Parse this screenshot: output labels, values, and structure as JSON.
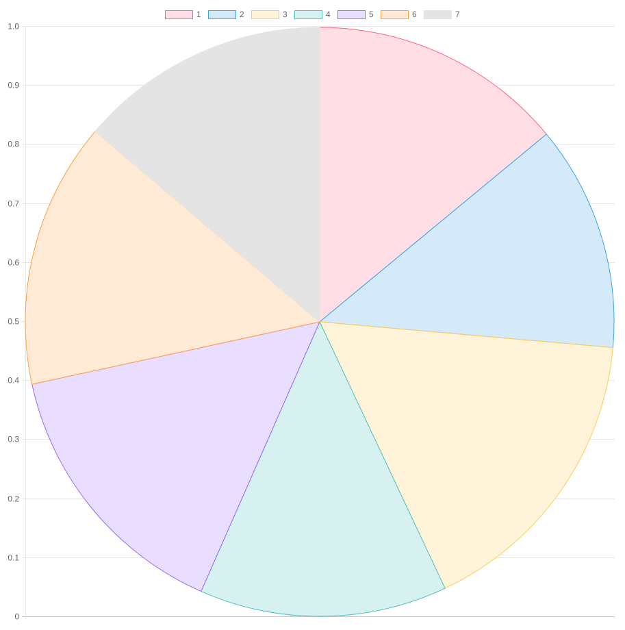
{
  "chart_data": {
    "type": "pie",
    "categories": [
      "1",
      "2",
      "3",
      "4",
      "5",
      "6",
      "7"
    ],
    "values": [
      14.0,
      12.4,
      16.6,
      13.6,
      15.0,
      14.6,
      13.8
    ],
    "legend": {
      "position": "top"
    },
    "yaxis": {
      "ylim": [
        0,
        1
      ],
      "ticks": [
        "0",
        "0.1",
        "0.2",
        "0.3",
        "0.4",
        "0.5",
        "0.6",
        "0.7",
        "0.8",
        "0.9",
        "1.0"
      ]
    },
    "grid": true,
    "colors": {
      "fills": [
        "#ffdfe5",
        "#d5eaf9",
        "#fff3da",
        "#d7f1f1",
        "#e9deff",
        "#ffead6",
        "#e4e4e4"
      ],
      "borders": [
        "#ff6384",
        "#36a2eb",
        "#ffcd56",
        "#4bc0c0",
        "#9966ff",
        "#ff9f40",
        "#e4e4e4"
      ]
    }
  }
}
